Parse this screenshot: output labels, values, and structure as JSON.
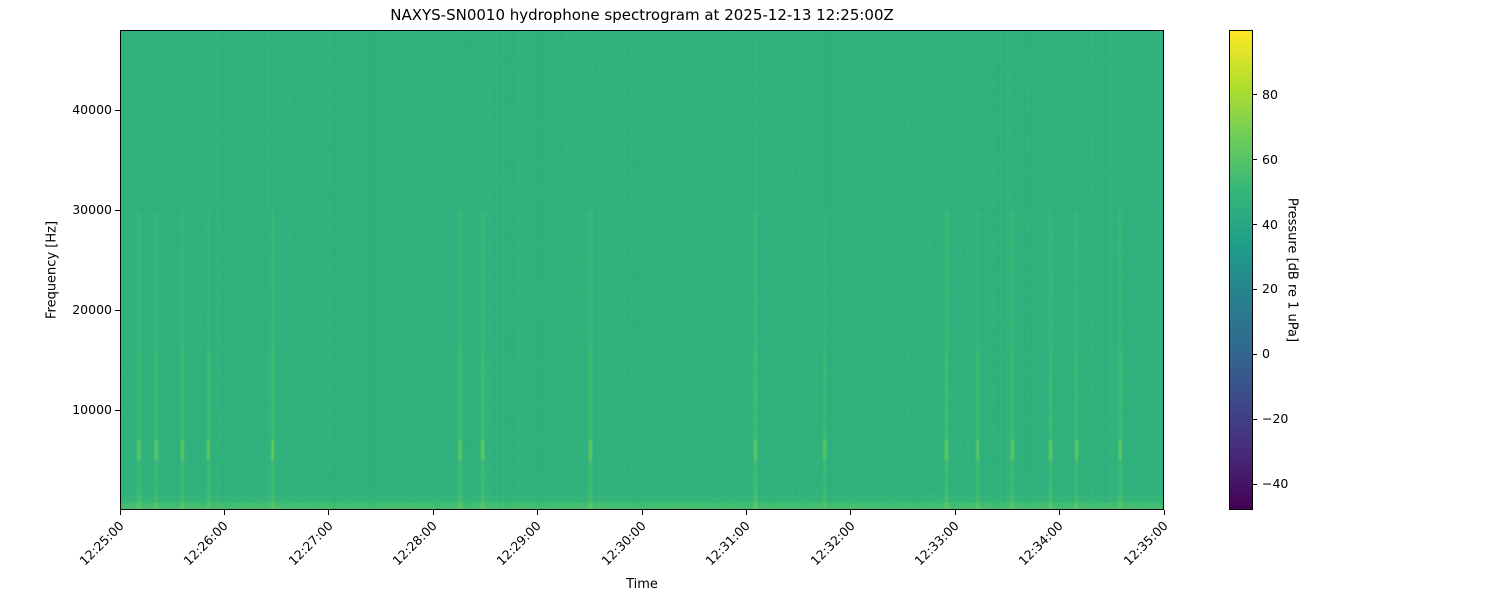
{
  "chart_data": {
    "type": "heatmap",
    "title": "NAXYS-SN0010 hydrophone spectrogram at 2025-12-13 12:25:00Z",
    "xlabel": "Time",
    "ylabel": "Frequency [Hz]",
    "x_ticks": [
      "12:25:00",
      "12:26:00",
      "12:27:00",
      "12:28:00",
      "12:29:00",
      "12:30:00",
      "12:31:00",
      "12:32:00",
      "12:33:00",
      "12:34:00",
      "12:35:00"
    ],
    "xlim": [
      "12:25:00",
      "12:35:00"
    ],
    "y_ticks": [
      10000,
      20000,
      30000,
      40000
    ],
    "ylim": [
      0,
      48000
    ],
    "colormap": "viridis",
    "colorbar": {
      "label": "Pressure [dB re 1 uPa]",
      "ticks": [
        -40,
        -20,
        0,
        20,
        40,
        60,
        80
      ],
      "range": [
        -48,
        100
      ]
    },
    "background_level_db": 47,
    "transient_times": [
      "12:25:10",
      "12:25:20",
      "12:25:35",
      "12:25:50",
      "12:26:27",
      "12:28:15",
      "12:28:28",
      "12:29:30",
      "12:31:05",
      "12:31:45",
      "12:32:55",
      "12:33:13",
      "12:33:33",
      "12:33:55",
      "12:34:10",
      "12:34:35"
    ],
    "grid": false
  }
}
